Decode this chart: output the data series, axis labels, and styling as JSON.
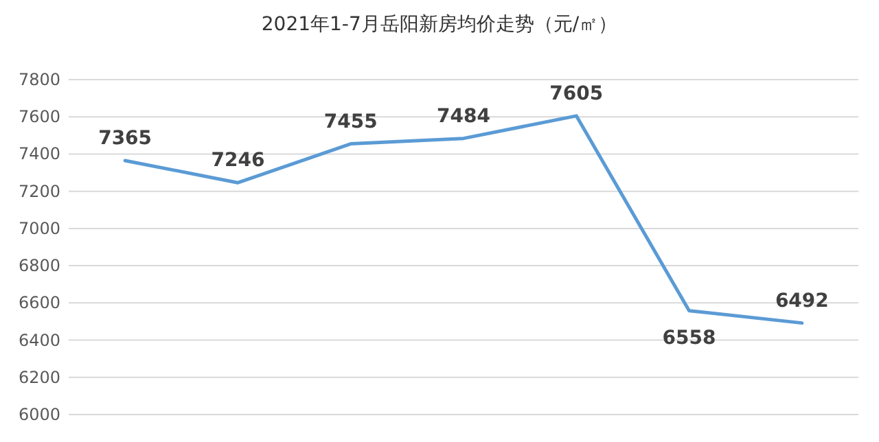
{
  "chart_data": {
    "type": "line",
    "title": "2021年1-7月岳阳新房均价走势（元/㎡）",
    "categories": [
      null,
      null,
      null,
      null,
      null,
      null,
      null
    ],
    "series": [
      {
        "color": "#5b9bd5",
        "values": [
          7365,
          7246,
          7455,
          7484,
          7605,
          6558,
          6492
        ]
      }
    ],
    "ylim": [
      6000,
      7800
    ],
    "yticks": [
      6000,
      6200,
      6400,
      6600,
      6800,
      7000,
      7200,
      7400,
      7600,
      7800
    ],
    "grid": "y",
    "data_labels": true,
    "marker": "none",
    "line_style": "solid"
  }
}
